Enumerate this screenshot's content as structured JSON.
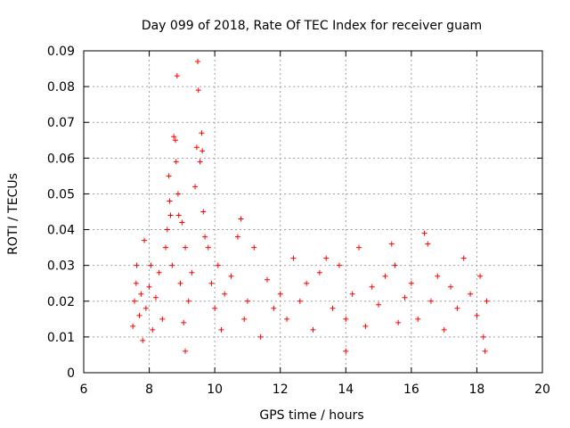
{
  "chart_data": {
    "type": "scatter",
    "title": "Day 099 of 2018, Rate Of TEC Index for receiver guam",
    "xlabel": "GPS time / hours",
    "ylabel": "ROTI / TECUs",
    "xlim": [
      6,
      20
    ],
    "ylim": [
      0,
      0.09
    ],
    "x_ticks": [
      6,
      8,
      10,
      12,
      14,
      16,
      18,
      20
    ],
    "y_ticks": [
      0,
      0.01,
      0.02,
      0.03,
      0.04,
      0.05,
      0.06,
      0.07,
      0.08,
      0.09
    ],
    "x_tick_labels": [
      "6",
      "8",
      "10",
      "12",
      "14",
      "16",
      "18",
      "20"
    ],
    "y_tick_labels": [
      "0",
      "0.01",
      "0.02",
      "0.03",
      "0.04",
      "0.05",
      "0.06",
      "0.07",
      "0.08",
      "0.09"
    ],
    "grid": true,
    "legend": "none",
    "marker": "plus",
    "color": "#ff0000",
    "points": [
      [
        7.5,
        0.013
      ],
      [
        7.55,
        0.02
      ],
      [
        7.6,
        0.025
      ],
      [
        7.62,
        0.03
      ],
      [
        7.7,
        0.016
      ],
      [
        7.75,
        0.022
      ],
      [
        7.8,
        0.009
      ],
      [
        7.85,
        0.037
      ],
      [
        7.9,
        0.018
      ],
      [
        8.0,
        0.024
      ],
      [
        8.05,
        0.03
      ],
      [
        8.1,
        0.012
      ],
      [
        8.2,
        0.021
      ],
      [
        8.3,
        0.028
      ],
      [
        8.4,
        0.015
      ],
      [
        8.5,
        0.035
      ],
      [
        8.55,
        0.04
      ],
      [
        8.6,
        0.055
      ],
      [
        8.62,
        0.048
      ],
      [
        8.65,
        0.044
      ],
      [
        8.7,
        0.03
      ],
      [
        8.75,
        0.066
      ],
      [
        8.8,
        0.065
      ],
      [
        8.82,
        0.059
      ],
      [
        8.85,
        0.083
      ],
      [
        8.88,
        0.05
      ],
      [
        8.9,
        0.044
      ],
      [
        8.95,
        0.025
      ],
      [
        9.0,
        0.042
      ],
      [
        9.05,
        0.014
      ],
      [
        9.1,
        0.035
      ],
      [
        9.2,
        0.02
      ],
      [
        9.3,
        0.028
      ],
      [
        9.4,
        0.052
      ],
      [
        9.45,
        0.063
      ],
      [
        9.48,
        0.087
      ],
      [
        9.5,
        0.079
      ],
      [
        9.55,
        0.059
      ],
      [
        9.6,
        0.067
      ],
      [
        9.62,
        0.062
      ],
      [
        9.65,
        0.045
      ],
      [
        9.7,
        0.038
      ],
      [
        9.8,
        0.035
      ],
      [
        9.9,
        0.025
      ],
      [
        10.0,
        0.018
      ],
      [
        10.1,
        0.03
      ],
      [
        10.2,
        0.012
      ],
      [
        10.3,
        0.022
      ],
      [
        10.5,
        0.027
      ],
      [
        10.7,
        0.038
      ],
      [
        10.8,
        0.043
      ],
      [
        10.9,
        0.015
      ],
      [
        11.0,
        0.02
      ],
      [
        11.2,
        0.035
      ],
      [
        11.4,
        0.01
      ],
      [
        11.6,
        0.026
      ],
      [
        11.8,
        0.018
      ],
      [
        12.0,
        0.022
      ],
      [
        12.2,
        0.015
      ],
      [
        12.4,
        0.032
      ],
      [
        12.6,
        0.02
      ],
      [
        12.8,
        0.025
      ],
      [
        13.0,
        0.012
      ],
      [
        13.2,
        0.028
      ],
      [
        13.4,
        0.032
      ],
      [
        13.6,
        0.018
      ],
      [
        13.8,
        0.03
      ],
      [
        14.0,
        0.015
      ],
      [
        14.2,
        0.022
      ],
      [
        14.4,
        0.035
      ],
      [
        14.6,
        0.013
      ],
      [
        14.8,
        0.024
      ],
      [
        15.0,
        0.019
      ],
      [
        15.2,
        0.027
      ],
      [
        15.4,
        0.036
      ],
      [
        15.5,
        0.03
      ],
      [
        15.6,
        0.014
      ],
      [
        15.8,
        0.021
      ],
      [
        16.0,
        0.025
      ],
      [
        16.2,
        0.015
      ],
      [
        16.4,
        0.039
      ],
      [
        16.5,
        0.036
      ],
      [
        16.6,
        0.02
      ],
      [
        16.8,
        0.027
      ],
      [
        17.0,
        0.012
      ],
      [
        17.2,
        0.024
      ],
      [
        17.4,
        0.018
      ],
      [
        17.6,
        0.032
      ],
      [
        17.8,
        0.022
      ],
      [
        18.0,
        0.016
      ],
      [
        18.1,
        0.027
      ],
      [
        18.2,
        0.01
      ],
      [
        18.3,
        0.02
      ],
      [
        18.25,
        0.006
      ],
      [
        9.1,
        0.006
      ],
      [
        14.0,
        0.006
      ]
    ]
  }
}
